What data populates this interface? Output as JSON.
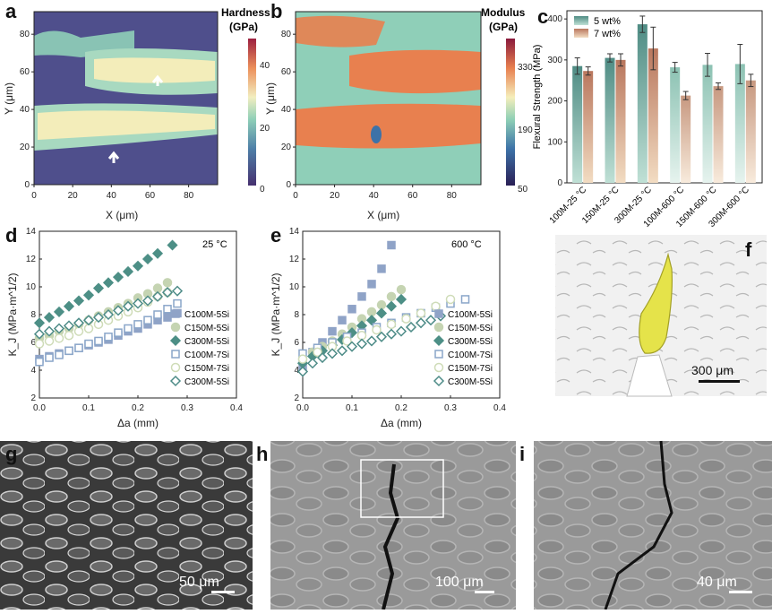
{
  "panels": {
    "a": {
      "label": "a",
      "cbar_title1": "Hardness",
      "cbar_title2": "(GPa)",
      "cbar_ticks": [
        "40",
        "20",
        "0"
      ],
      "xlabel": "X (μm)",
      "ylabel": "Y (μm)",
      "xticks": [
        "0",
        "20",
        "40",
        "60",
        "80"
      ],
      "yticks": [
        "80",
        "60",
        "40",
        "20",
        "0"
      ]
    },
    "b": {
      "label": "b",
      "cbar_title1": "Modulus",
      "cbar_title2": "(GPa)",
      "cbar_ticks": [
        "330",
        "190",
        "50"
      ],
      "xlabel": "X (μm)",
      "ylabel": "Y (μm)",
      "xticks": [
        "0",
        "20",
        "40",
        "60",
        "80"
      ],
      "yticks": [
        "80",
        "60",
        "40",
        "20",
        "0"
      ]
    },
    "c": {
      "label": "c"
    },
    "d": {
      "label": "d",
      "temp": "25 °C"
    },
    "e": {
      "label": "e",
      "temp": "600 °C"
    },
    "f": {
      "label": "f",
      "scale": "300 μm"
    },
    "g": {
      "label": "g",
      "scale": "50 μm"
    },
    "h": {
      "label": "h",
      "scale": "100 μm"
    },
    "i": {
      "label": "i",
      "scale": "40 μm"
    }
  },
  "colors": {
    "teal_dark": "#4f8c84",
    "teal_light": "#bfe0d5",
    "orange_dark": "#b9775e",
    "orange_light": "#f2dcc2",
    "blue_sq": "#8fa3c7",
    "sage": "#c5d4b2",
    "teal_d": "#4d8f86",
    "open_sq": "#8aa6c9",
    "open_circ": "#cfdcb8",
    "open_dia": "#4e8c88"
  },
  "chart_data": [
    {
      "type": "bar",
      "panel": "c",
      "ylabel": "Flexural Strength (MPa)",
      "ylim": [
        0,
        420
      ],
      "yticks": [
        "0",
        "100",
        "200",
        "300",
        "400"
      ],
      "categories": [
        "100M-25 °C",
        "150M-25 °C",
        "300M-25 °C",
        "100M-600 °C",
        "150M-600 °C",
        "300M-600 °C"
      ],
      "series": [
        {
          "name": "5 wt%",
          "values": [
            285,
            305,
            387,
            282,
            288,
            290
          ],
          "errors": [
            20,
            10,
            20,
            12,
            28,
            48
          ]
        },
        {
          "name": "7 wt%",
          "values": [
            273,
            300,
            328,
            213,
            236,
            250
          ],
          "errors": [
            10,
            15,
            52,
            10,
            8,
            15
          ]
        }
      ],
      "legend": "top-left"
    },
    {
      "type": "scatter",
      "panel": "d",
      "xlabel": "Δa (mm)",
      "ylabel": "K_J (MPa·m^1/2)",
      "xlim": [
        0,
        0.4
      ],
      "ylim": [
        2,
        14
      ],
      "xticks": [
        "0.0",
        "0.1",
        "0.2",
        "0.3",
        "0.4"
      ],
      "yticks": [
        "2",
        "4",
        "6",
        "8",
        "10",
        "12",
        "14"
      ],
      "legend": "lower-right",
      "series": [
        {
          "name": "C100M-5Si",
          "marker": "square-filled",
          "x": [
            0.0,
            0.02,
            0.04,
            0.06,
            0.08,
            0.1,
            0.12,
            0.14,
            0.16,
            0.18,
            0.2,
            0.22,
            0.24,
            0.26,
            0.28
          ],
          "y": [
            4.8,
            5.0,
            5.2,
            5.4,
            5.6,
            5.8,
            6.0,
            6.2,
            6.5,
            6.8,
            7.0,
            7.3,
            7.6,
            7.8,
            8.1
          ]
        },
        {
          "name": "C150M-5Si",
          "marker": "circle-filled",
          "x": [
            0.0,
            0.02,
            0.04,
            0.06,
            0.08,
            0.1,
            0.12,
            0.14,
            0.16,
            0.18,
            0.2,
            0.22,
            0.24,
            0.26
          ],
          "y": [
            6.3,
            6.5,
            6.8,
            7.0,
            7.3,
            7.6,
            7.9,
            8.2,
            8.5,
            8.8,
            9.2,
            9.5,
            9.9,
            10.3
          ]
        },
        {
          "name": "C300M-5Si",
          "marker": "diamond-filled",
          "x": [
            0.0,
            0.02,
            0.04,
            0.06,
            0.08,
            0.1,
            0.12,
            0.14,
            0.16,
            0.18,
            0.2,
            0.22,
            0.24,
            0.27
          ],
          "y": [
            7.4,
            7.8,
            8.2,
            8.6,
            9.0,
            9.4,
            9.9,
            10.3,
            10.7,
            11.1,
            11.5,
            12.0,
            12.4,
            13.0
          ]
        },
        {
          "name": "C100M-7Si",
          "marker": "square-open",
          "x": [
            0.0,
            0.02,
            0.04,
            0.06,
            0.08,
            0.1,
            0.12,
            0.14,
            0.16,
            0.18,
            0.2,
            0.22,
            0.24,
            0.26,
            0.28
          ],
          "y": [
            4.6,
            4.9,
            5.1,
            5.4,
            5.6,
            5.9,
            6.1,
            6.4,
            6.7,
            7.0,
            7.3,
            7.6,
            8.0,
            8.4,
            8.8
          ]
        },
        {
          "name": "C150M-7Si",
          "marker": "circle-open",
          "x": [
            0.0,
            0.02,
            0.04,
            0.06,
            0.08,
            0.1,
            0.12,
            0.14,
            0.16,
            0.18,
            0.2,
            0.22,
            0.24,
            0.26
          ],
          "y": [
            5.9,
            6.1,
            6.3,
            6.5,
            6.8,
            7.0,
            7.3,
            7.6,
            7.9,
            8.2,
            8.5,
            8.9,
            9.3,
            9.6
          ]
        },
        {
          "name": "C300M-5Si",
          "marker": "diamond-open",
          "x": [
            0.0,
            0.02,
            0.04,
            0.06,
            0.08,
            0.1,
            0.12,
            0.14,
            0.16,
            0.18,
            0.2,
            0.22,
            0.24,
            0.26,
            0.28
          ],
          "y": [
            6.6,
            6.8,
            7.0,
            7.2,
            7.4,
            7.6,
            7.8,
            8.0,
            8.3,
            8.6,
            8.8,
            9.0,
            9.3,
            9.6,
            9.7
          ]
        }
      ]
    },
    {
      "type": "scatter",
      "panel": "e",
      "xlabel": "Δa (mm)",
      "ylabel": "K_J (MPa·m^1/2)",
      "xlim": [
        0,
        0.4
      ],
      "ylim": [
        2,
        14
      ],
      "xticks": [
        "0.0",
        "0.1",
        "0.2",
        "0.3",
        "0.4"
      ],
      "yticks": [
        "2",
        "4",
        "6",
        "8",
        "10",
        "12",
        "14"
      ],
      "legend": "lower-right",
      "series": [
        {
          "name": "C100M-5Si",
          "marker": "square-filled",
          "x": [
            0.0,
            0.02,
            0.04,
            0.06,
            0.08,
            0.1,
            0.12,
            0.14,
            0.16,
            0.18
          ],
          "y": [
            4.3,
            5.3,
            6.0,
            6.8,
            7.6,
            8.4,
            9.3,
            10.2,
            11.3,
            13.0
          ]
        },
        {
          "name": "C150M-5Si",
          "marker": "circle-filled",
          "x": [
            0.0,
            0.02,
            0.04,
            0.06,
            0.08,
            0.1,
            0.12,
            0.14,
            0.16,
            0.18,
            0.2
          ],
          "y": [
            4.8,
            5.3,
            5.7,
            6.1,
            6.6,
            7.1,
            7.7,
            8.2,
            8.7,
            9.3,
            9.8
          ]
        },
        {
          "name": "C300M-5Si",
          "marker": "diamond-filled",
          "x": [
            0.0,
            0.02,
            0.04,
            0.06,
            0.08,
            0.1,
            0.12,
            0.14,
            0.16,
            0.18,
            0.2
          ],
          "y": [
            4.5,
            5.0,
            5.4,
            5.8,
            6.2,
            6.7,
            7.2,
            7.6,
            8.1,
            8.6,
            9.1
          ]
        },
        {
          "name": "C100M-7Si",
          "marker": "square-open",
          "x": [
            0.0,
            0.03,
            0.06,
            0.09,
            0.12,
            0.15,
            0.18,
            0.21,
            0.24,
            0.27,
            0.3,
            0.33
          ],
          "y": [
            5.2,
            5.6,
            6.0,
            6.4,
            6.7,
            7.1,
            7.4,
            7.8,
            8.1,
            8.5,
            8.8,
            9.1
          ]
        },
        {
          "name": "C150M-7Si",
          "marker": "circle-open",
          "x": [
            0.0,
            0.03,
            0.06,
            0.09,
            0.12,
            0.15,
            0.18,
            0.21,
            0.24,
            0.27,
            0.3
          ],
          "y": [
            4.8,
            5.3,
            5.7,
            6.1,
            6.5,
            6.9,
            7.3,
            7.7,
            8.1,
            8.6,
            9.1
          ]
        },
        {
          "name": "C300M-5Si",
          "marker": "diamond-open",
          "x": [
            0.0,
            0.02,
            0.04,
            0.06,
            0.08,
            0.1,
            0.12,
            0.14,
            0.16,
            0.18,
            0.2,
            0.22,
            0.24,
            0.26,
            0.28
          ],
          "y": [
            3.9,
            4.5,
            4.9,
            5.2,
            5.4,
            5.7,
            5.9,
            6.1,
            6.4,
            6.6,
            6.8,
            7.1,
            7.4,
            7.6,
            7.9
          ]
        }
      ]
    }
  ]
}
